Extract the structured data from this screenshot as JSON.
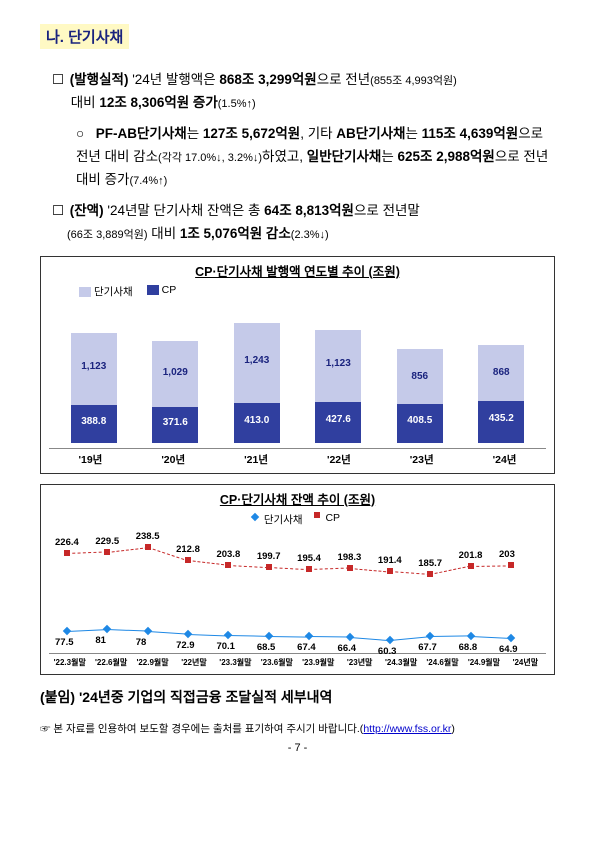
{
  "section_title": "나. 단기사채",
  "para1_a": "(발행실적)",
  "para1_b": " '24년 발행액은 ",
  "para1_c": "868조 3,299억원",
  "para1_d": "으로 전년",
  "para1_e": "(855조 4,993억원)",
  "para1_f": " 대비 ",
  "para1_g": "12조 8,306억원 증가",
  "para1_h": "(1.5%↑)",
  "sub1_a": "PF-AB단기사채",
  "sub1_b": "는 ",
  "sub1_c": "127조 5,672억원",
  "sub1_d": ", 기타 ",
  "sub1_e": "AB단기사채",
  "sub1_f": "는 ",
  "sub1_g": "115조 4,639억원",
  "sub1_h": "으로 전년 대비 감소",
  "sub1_i": "(각각 17.0%↓, 3.2%↓)",
  "sub1_j": "하였고, ",
  "sub1_k": "일반단기사채",
  "sub1_l": "는 ",
  "sub1_m": "625조 2,988억원",
  "sub1_n": "으로 전년 대비 증가",
  "sub1_o": "(7.4%↑)",
  "para2_a": "(잔액)",
  "para2_b": " '24년말 단기사채 잔액은 총 ",
  "para2_c": "64조 8,813억원",
  "para2_d": "으로 전년말",
  "para2_e": "(66조 3,889억원)",
  "para2_f": " 대비 ",
  "para2_g": "1조 5,076억원 감소",
  "para2_h": "(2.3%↓)",
  "chart1": {
    "title": "CP·단기사채 발행액 연도별 추이 (조원)",
    "legend_a": "단기사채",
    "legend_b": "CP",
    "color_top": "#c5cae9",
    "color_bot": "#303f9f",
    "years": [
      "'19년",
      "'20년",
      "'21년",
      "'22년",
      "'23년",
      "'24년"
    ],
    "top_vals": [
      "1,123",
      "1,029",
      "1,243",
      "1,123",
      "856",
      "868"
    ],
    "bot_vals": [
      "388.8",
      "371.6",
      "413.0",
      "427.6",
      "408.5",
      "435.2"
    ],
    "top_h": [
      72,
      66,
      80,
      72,
      55,
      56
    ],
    "bot_h": [
      38,
      36,
      40,
      41,
      39,
      42
    ]
  },
  "chart2": {
    "title": "CP·단기사채 잔액 추이 (조원)",
    "legend_a": "단기사채",
    "legend_b": "CP",
    "color_cp": "#c62828",
    "color_st": "#1e88e5",
    "x": [
      "'22.3월말",
      "'22.6월말",
      "'22.9월말",
      "'22년말",
      "'23.3월말",
      "'23.6월말",
      "'23.9월말",
      "'23년말",
      "'24.3월말",
      "'24.6월말",
      "'24.9월말",
      "'24년말"
    ],
    "cp": [
      226.4,
      229.5,
      238.5,
      212.8,
      203.8,
      199.7,
      195.4,
      198.3,
      191.4,
      185.7,
      201.8,
      203.0
    ],
    "st": [
      77.5,
      81.0,
      78.0,
      72.9,
      70.1,
      68.5,
      67.4,
      66.4,
      60.3,
      67.7,
      68.8,
      64.9
    ]
  },
  "attach": "(붙임) '24년중 기업의 직접금융 조달실적 세부내역",
  "footer_prefix": "☞ 본 자료를 인용하여 보도할 경우에는 출처를 표기하여 주시기 바랍니다.(",
  "footer_link": "http://www.fss.or.kr",
  "footer_suffix": ")",
  "page": "- 7 -"
}
